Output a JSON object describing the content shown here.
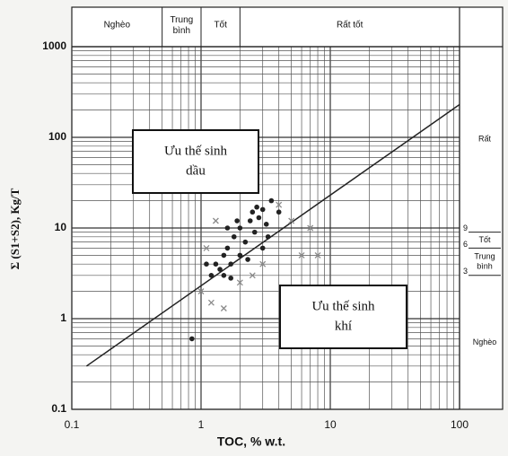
{
  "chart_data": {
    "type": "scatter",
    "xlabel": "TOC, % w.t.",
    "ylabel": "Σ (S1+S2), Kg/T",
    "xlim": [
      0.1,
      100
    ],
    "ylim": [
      0.1,
      1000
    ],
    "xticks": [
      0.1,
      1,
      10,
      100
    ],
    "yticks": [
      0.1,
      1,
      10,
      100,
      1000
    ],
    "log_x": true,
    "log_y": true,
    "grid": true,
    "top_bands": [
      {
        "label": "Nghèo",
        "from": 0.1,
        "to": 0.5
      },
      {
        "label": "Trung bình",
        "from": 0.5,
        "to": 1
      },
      {
        "label": "Tốt",
        "from": 1,
        "to": 2
      },
      {
        "label": "Rất tốt",
        "from": 2,
        "to": 100
      }
    ],
    "right_bands": [
      {
        "label": "Rất",
        "from": 9,
        "to": 1000
      },
      {
        "label": "Tốt",
        "from": 6,
        "to": 9
      },
      {
        "label": "Trung bình",
        "from": 3,
        "to": 6
      },
      {
        "label": "Nghèo",
        "from": 0.1,
        "to": 3
      }
    ],
    "right_thresholds": [
      9,
      6,
      3
    ],
    "trend_line": {
      "color": "#222",
      "x": [
        0.13,
        100
      ],
      "values": [
        0.3,
        230
      ]
    },
    "series": [
      {
        "marker": "dot",
        "color": "#222",
        "x": [
          1.2,
          1.3,
          1.4,
          1.5,
          1.6,
          1.7,
          1.8,
          2.0,
          2.2,
          2.4,
          2.5,
          2.6,
          2.8,
          3.0,
          3.2,
          3.5,
          2.0,
          1.5,
          1.1,
          2.7,
          3.0,
          1.9,
          4.0,
          2.3,
          1.7,
          0.85,
          1.6,
          3.3
        ],
        "values": [
          3,
          4,
          3.5,
          5,
          6,
          4,
          8,
          10,
          7,
          12,
          15,
          9,
          13,
          16,
          11,
          20,
          5,
          3,
          4,
          17,
          6,
          12,
          15,
          4.5,
          2.8,
          0.6,
          10,
          8
        ]
      },
      {
        "marker": "x",
        "color": "#8a8a8a",
        "x": [
          1.2,
          1.5,
          1.0,
          2.0,
          2.5,
          7,
          5,
          6,
          8,
          1.3,
          4,
          3,
          1.1
        ],
        "values": [
          1.5,
          1.3,
          2,
          2.5,
          3,
          10,
          12,
          5,
          5,
          12,
          18,
          4,
          6
        ]
      }
    ],
    "annotations": [
      {
        "lines": [
          "Ưu thế sinh",
          "dầu"
        ]
      },
      {
        "lines": [
          "Ưu thế sinh",
          "khí"
        ]
      }
    ]
  }
}
